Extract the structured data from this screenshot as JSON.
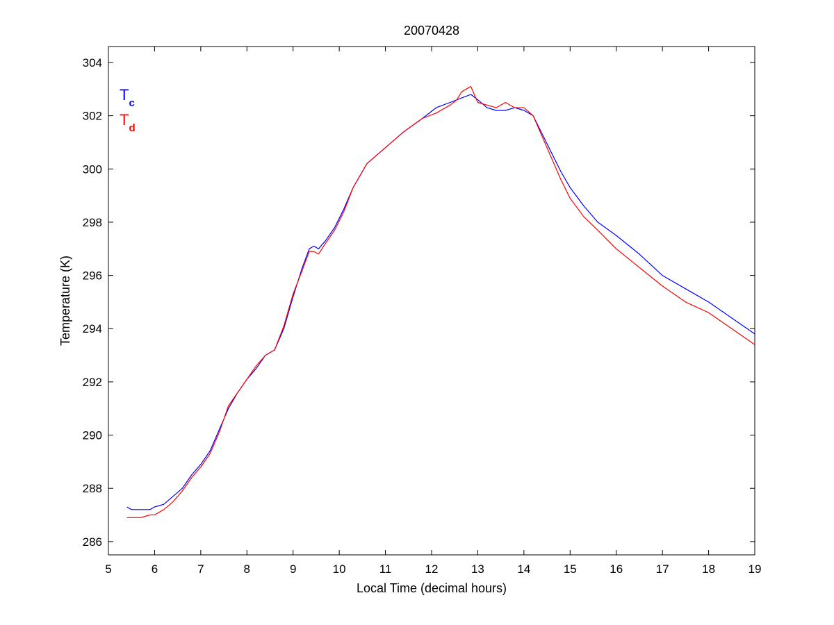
{
  "chart_data": {
    "type": "line",
    "title": "20070428",
    "xlabel": "Local Time (decimal hours)",
    "ylabel": "Temperature (K)",
    "xlim": [
      5,
      19
    ],
    "ylim": [
      285.5,
      304.6
    ],
    "xticks": [
      5,
      6,
      7,
      8,
      9,
      10,
      11,
      12,
      13,
      14,
      15,
      16,
      17,
      18,
      19
    ],
    "yticks": [
      286,
      288,
      290,
      292,
      294,
      296,
      298,
      300,
      302,
      304
    ],
    "grid": false,
    "legend_position": "top-left",
    "series": [
      {
        "name_main": "T",
        "name_sub": "c",
        "color": "#0000ff",
        "x": [
          5.4,
          5.5,
          5.7,
          5.9,
          6.0,
          6.2,
          6.4,
          6.6,
          6.8,
          7.0,
          7.2,
          7.4,
          7.6,
          7.8,
          8.0,
          8.2,
          8.4,
          8.6,
          8.8,
          9.0,
          9.2,
          9.35,
          9.45,
          9.55,
          9.7,
          9.9,
          10.1,
          10.3,
          10.6,
          11.0,
          11.4,
          11.8,
          12.1,
          12.4,
          12.7,
          12.85,
          13.0,
          13.2,
          13.4,
          13.6,
          13.8,
          14.0,
          14.2,
          14.4,
          14.6,
          14.8,
          15.0,
          15.3,
          15.6,
          16.0,
          16.5,
          17.0,
          17.5,
          18.0,
          18.5,
          19.0
        ],
        "y": [
          287.3,
          287.2,
          287.2,
          287.2,
          287.3,
          287.4,
          287.7,
          288.0,
          288.5,
          288.9,
          289.4,
          290.2,
          291.0,
          291.6,
          292.1,
          292.5,
          293.0,
          293.2,
          294.0,
          295.2,
          296.3,
          297.0,
          297.1,
          297.0,
          297.3,
          297.8,
          298.5,
          299.3,
          300.2,
          300.8,
          301.4,
          301.9,
          302.3,
          302.5,
          302.7,
          302.8,
          302.6,
          302.3,
          302.2,
          302.2,
          302.3,
          302.2,
          302.0,
          301.3,
          300.6,
          299.9,
          299.3,
          298.6,
          298.0,
          297.5,
          296.8,
          296.0,
          295.5,
          295.0,
          294.4,
          293.8
        ]
      },
      {
        "name_main": "T",
        "name_sub": "d",
        "color": "#ff0000",
        "x": [
          5.4,
          5.5,
          5.7,
          5.9,
          6.0,
          6.2,
          6.4,
          6.6,
          6.8,
          7.0,
          7.2,
          7.4,
          7.6,
          7.8,
          8.0,
          8.2,
          8.4,
          8.6,
          8.8,
          9.0,
          9.2,
          9.35,
          9.45,
          9.55,
          9.7,
          9.9,
          10.1,
          10.3,
          10.6,
          11.0,
          11.4,
          11.8,
          12.1,
          12.4,
          12.55,
          12.65,
          12.75,
          12.85,
          13.0,
          13.2,
          13.4,
          13.6,
          13.8,
          14.0,
          14.2,
          14.4,
          14.6,
          14.8,
          15.0,
          15.3,
          15.6,
          16.0,
          16.5,
          17.0,
          17.5,
          18.0,
          18.5,
          19.0
        ],
        "y": [
          286.9,
          286.9,
          286.9,
          287.0,
          287.0,
          287.2,
          287.5,
          287.9,
          288.4,
          288.8,
          289.3,
          290.1,
          291.1,
          291.6,
          292.1,
          292.6,
          293.0,
          293.2,
          294.1,
          295.3,
          296.2,
          296.9,
          296.9,
          296.8,
          297.2,
          297.7,
          298.4,
          299.3,
          300.2,
          300.8,
          301.4,
          301.9,
          302.1,
          302.4,
          302.6,
          302.9,
          303.0,
          303.1,
          302.5,
          302.4,
          302.3,
          302.5,
          302.3,
          302.3,
          302.0,
          301.2,
          300.4,
          299.6,
          298.9,
          298.2,
          297.7,
          297.0,
          296.3,
          295.6,
          295.0,
          294.6,
          294.0,
          293.4
        ]
      }
    ]
  }
}
